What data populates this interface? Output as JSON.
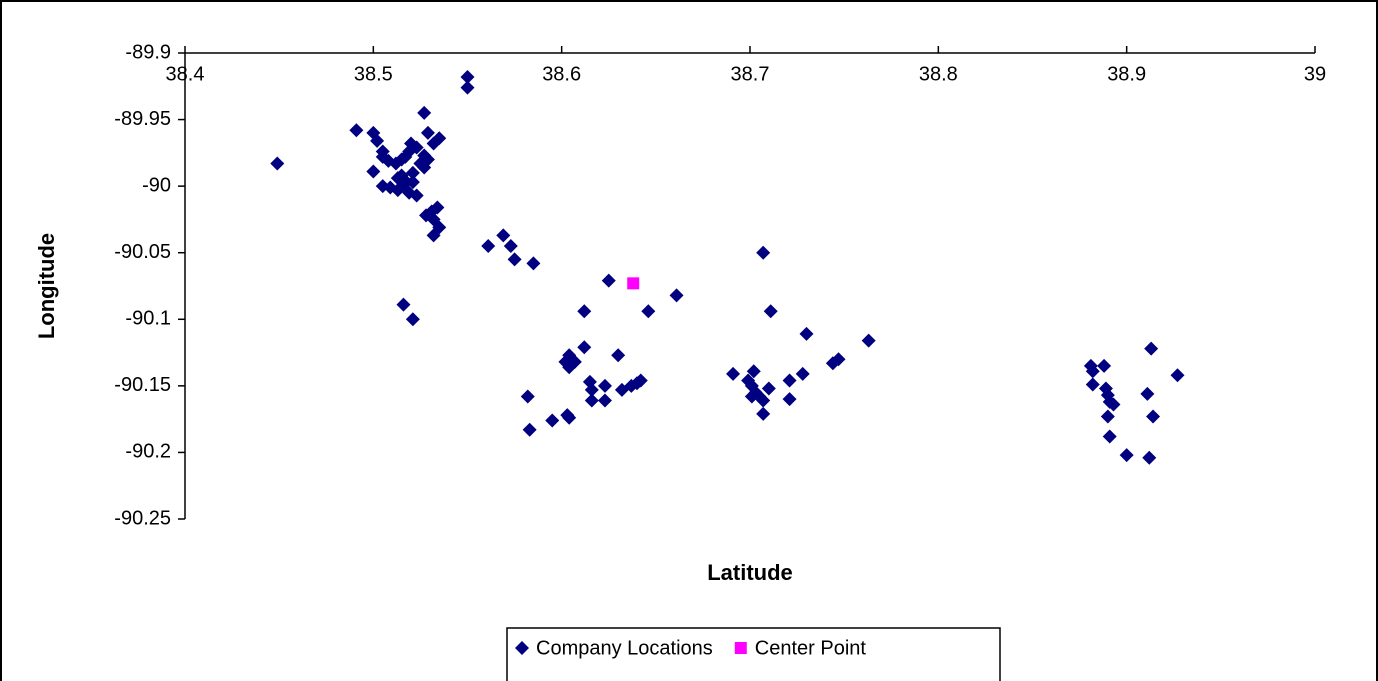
{
  "chart_data": {
    "type": "scatter",
    "x_label": "Latitude",
    "y_label": "Longitude",
    "xlim": [
      38.4,
      39
    ],
    "xticks": [
      38.4,
      38.5,
      38.6,
      38.7,
      38.8,
      38.9,
      39
    ],
    "ylim": [
      -90.25,
      -89.9
    ],
    "yticks": [
      -89.9,
      -89.95,
      -90,
      -90.05,
      -90.1,
      -90.15,
      -90.2,
      -90.25
    ],
    "grid": false,
    "legend": "bottom",
    "series": [
      {
        "name": "Company Locations",
        "color": "#000080",
        "marker": "diamond",
        "x": [
          38.449,
          38.55,
          38.55,
          38.491,
          38.5,
          38.502,
          38.505,
          38.527,
          38.529,
          38.535,
          38.532,
          38.52,
          38.523,
          38.505,
          38.508,
          38.512,
          38.515,
          38.517,
          38.519,
          38.527,
          38.529,
          38.527,
          38.525,
          38.5,
          38.505,
          38.509,
          38.513,
          38.515,
          38.517,
          38.521,
          38.519,
          38.513,
          38.516,
          38.523,
          38.521,
          38.528,
          38.531,
          38.534,
          38.532,
          38.535,
          38.532,
          38.516,
          38.521,
          38.561,
          38.569,
          38.573,
          38.575,
          38.585,
          38.612,
          38.625,
          38.646,
          38.661,
          38.612,
          38.604,
          38.602,
          38.604,
          38.607,
          38.615,
          38.616,
          38.623,
          38.63,
          38.632,
          38.637,
          38.64,
          38.642,
          38.616,
          38.623,
          38.582,
          38.583,
          38.595,
          38.603,
          38.604,
          38.707,
          38.711,
          38.73,
          38.691,
          38.702,
          38.699,
          38.701,
          38.703,
          38.705,
          38.701,
          38.707,
          38.71,
          38.707,
          38.721,
          38.721,
          38.728,
          38.744,
          38.747,
          38.763,
          38.881,
          38.882,
          38.888,
          38.882,
          38.889,
          38.89,
          38.891,
          38.893,
          38.89,
          38.891,
          38.9,
          38.913,
          38.911,
          38.914,
          38.912,
          38.927
        ],
        "y": [
          -89.983,
          -89.918,
          -89.926,
          -89.958,
          -89.96,
          -89.966,
          -89.974,
          -89.945,
          -89.96,
          -89.964,
          -89.968,
          -89.968,
          -89.971,
          -89.978,
          -89.981,
          -89.983,
          -89.98,
          -89.978,
          -89.974,
          -89.977,
          -89.98,
          -89.986,
          -89.983,
          -89.989,
          -90.0,
          -90.001,
          -90.003,
          -89.992,
          -89.996,
          -89.99,
          -90.005,
          -89.994,
          -89.999,
          -90.007,
          -89.997,
          -90.022,
          -90.019,
          -90.016,
          -90.025,
          -90.031,
          -90.037,
          -90.089,
          -90.1,
          -90.045,
          -90.037,
          -90.045,
          -90.055,
          -90.058,
          -90.094,
          -90.071,
          -90.094,
          -90.082,
          -90.121,
          -90.127,
          -90.132,
          -90.136,
          -90.132,
          -90.147,
          -90.153,
          -90.15,
          -90.127,
          -90.153,
          -90.15,
          -90.148,
          -90.146,
          -90.161,
          -90.161,
          -90.158,
          -90.183,
          -90.176,
          -90.172,
          -90.174,
          -90.05,
          -90.094,
          -90.111,
          -90.141,
          -90.139,
          -90.146,
          -90.15,
          -90.155,
          -90.158,
          -90.158,
          -90.161,
          -90.152,
          -90.171,
          -90.16,
          -90.146,
          -90.141,
          -90.133,
          -90.13,
          -90.116,
          -90.135,
          -90.139,
          -90.135,
          -90.149,
          -90.152,
          -90.157,
          -90.162,
          -90.164,
          -90.173,
          -90.188,
          -90.202,
          -90.122,
          -90.156,
          -90.173,
          -90.204,
          -90.142
        ]
      },
      {
        "name": "Center Point",
        "color": "#ff00ff",
        "marker": "square",
        "x": [
          38.638
        ],
        "y": [
          -90.073
        ]
      }
    ]
  }
}
